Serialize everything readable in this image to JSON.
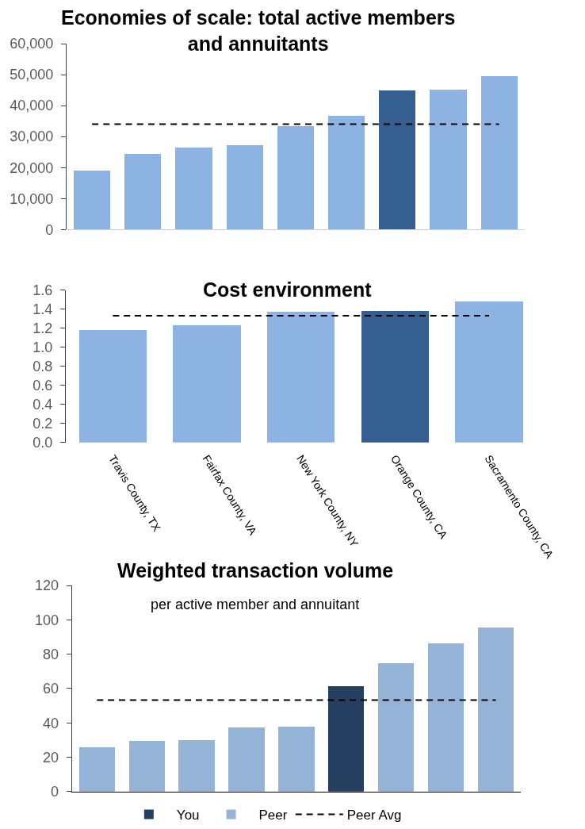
{
  "chart_data": [
    {
      "type": "bar",
      "title": "Economies of scale: total active members and annuitants",
      "categories": [
        null,
        null,
        null,
        null,
        null,
        null,
        null,
        null,
        null
      ],
      "series": [
        {
          "colors": [
            "#8db3e2",
            "#8db3e2",
            "#8db3e2",
            "#8db3e2",
            "#8db3e2",
            "#8db3e2",
            "#355f91",
            "#8db3e2",
            "#8db3e2"
          ],
          "values": [
            19000,
            24300,
            26500,
            27100,
            33500,
            36700,
            44800,
            45200,
            49500
          ]
        },
        {
          "type": "line",
          "color": "#000000",
          "line_style": "dashed",
          "values": [
            34000,
            34000,
            34000,
            34000,
            34000,
            34000,
            34000,
            34000,
            34000
          ]
        }
      ],
      "ylim": [
        0,
        60000
      ],
      "yticks": [
        0,
        {
          "value": 10000,
          "label": "10,000"
        },
        {
          "value": 20000,
          "label": "20,000"
        },
        {
          "value": 30000,
          "label": "30,000"
        },
        {
          "value": 40000,
          "label": "40,000"
        },
        {
          "value": 50000,
          "label": "50,000"
        },
        {
          "value": 60000,
          "label": "60,000"
        }
      ]
    },
    {
      "type": "bar",
      "title": "Cost environment",
      "categories": [
        "Travis County, TX",
        "Fairfax County, VA",
        "New York County, NY",
        "Orange County, CA",
        "Sacramento County, CA"
      ],
      "series": [
        {
          "colors": [
            "#8db3e2",
            "#8db3e2",
            "#8db3e2",
            "#355f91",
            "#8db3e2"
          ],
          "values": [
            1.18,
            1.23,
            1.37,
            1.38,
            1.48
          ]
        },
        {
          "type": "line",
          "color": "#000000",
          "line_style": "dashed",
          "values": [
            1.33,
            1.33,
            1.33,
            1.33,
            1.33
          ]
        }
      ],
      "ylim": [
        0,
        1.6
      ],
      "yticks": [
        {
          "value": 0,
          "label": "0.0"
        },
        0.2,
        0.4,
        0.6,
        0.8,
        {
          "value": 1,
          "label": "1.0"
        },
        1.2,
        1.4,
        1.6
      ]
    },
    {
      "type": "bar",
      "title": "Weighted transaction volume",
      "subtitle": "per active member and annuitant",
      "categories": [
        null,
        null,
        null,
        null,
        null,
        null,
        null,
        null,
        null
      ],
      "stacked": true,
      "series": [
        {
          "name": "You",
          "color": "#243f60",
          "values": [
            null,
            null,
            null,
            null,
            null,
            61.2,
            null,
            null,
            null
          ]
        },
        {
          "name": "Peer",
          "color": "#95b3d7",
          "values": [
            25.6,
            29.3,
            29.7,
            37.3,
            37.9,
            null,
            74.6,
            86.2,
            95.5
          ]
        },
        {
          "type": "line",
          "name": "Peer Avg",
          "color": "#000000",
          "line_style": "dashed",
          "values": [
            53.2,
            53.2,
            53.2,
            53.2,
            53.2,
            53.2,
            53.2,
            53.2,
            53.2
          ]
        }
      ],
      "ylim": [
        0,
        120
      ],
      "yticks": [
        0,
        20,
        40,
        60,
        80,
        100,
        120
      ],
      "legend": "bottom"
    }
  ]
}
